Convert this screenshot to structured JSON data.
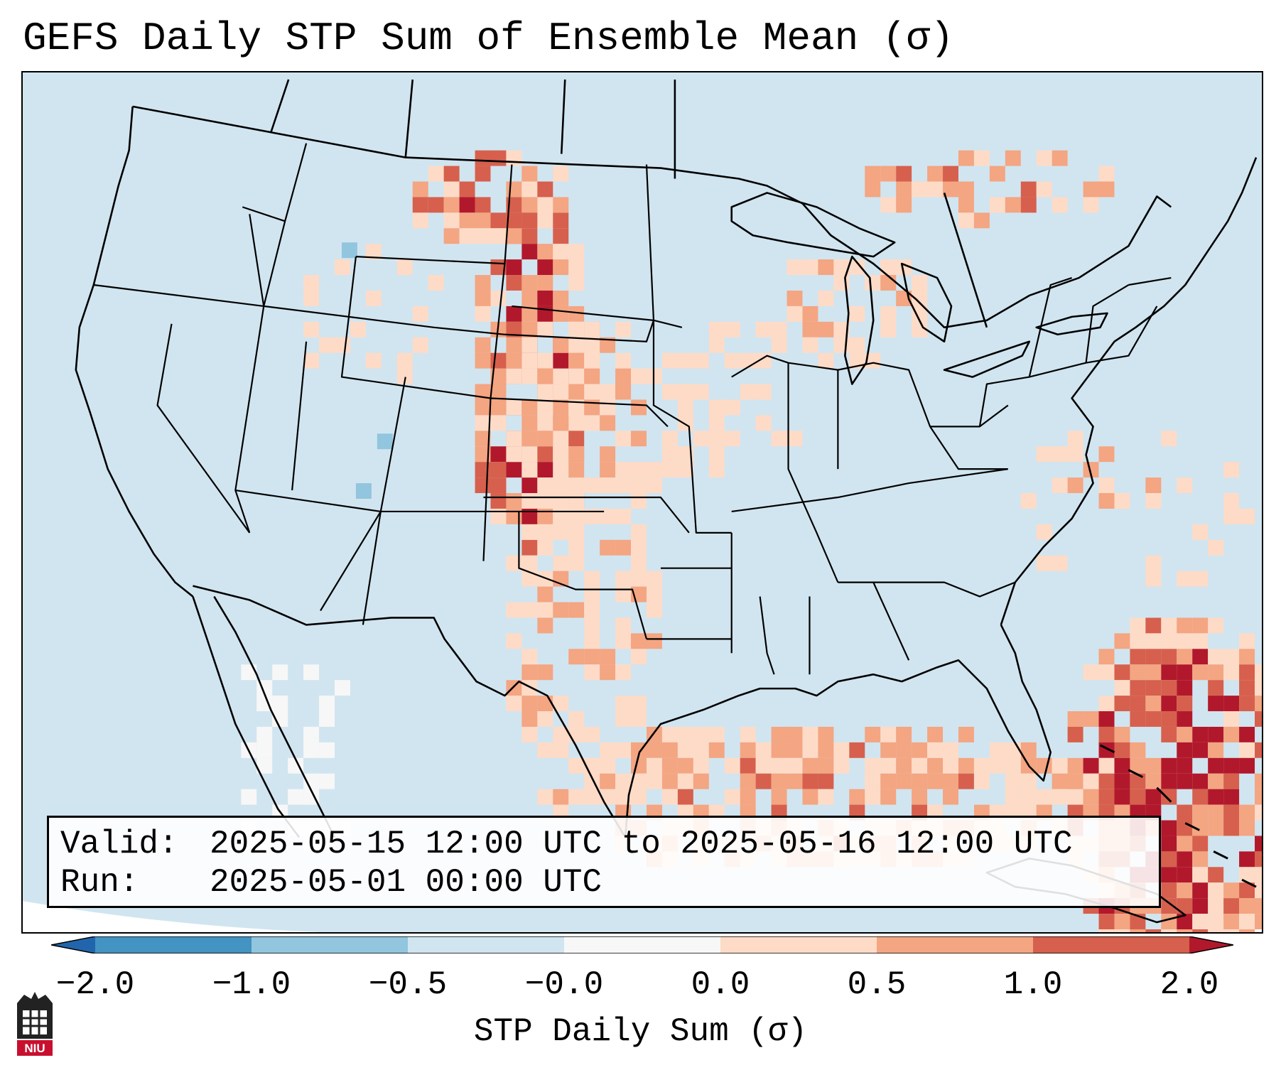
{
  "title": "GEFS Daily STP Sum of Ensemble Mean (σ)",
  "info": {
    "valid_label": "Valid:",
    "valid_value": "2025-05-15 12:00 UTC to 2025-05-16 12:00 UTC",
    "run_label": "Run:",
    "run_value": "2025-05-01 00:00 UTC"
  },
  "colorbar": {
    "label": "STP Daily Sum (σ)",
    "ticks": [
      "−2.0",
      "−1.0",
      "−0.5",
      "−0.0",
      "0.0",
      "0.5",
      "1.0",
      "2.0"
    ],
    "colors": {
      "below_min": "#2166ac",
      "bin_neg2_neg1": "#4393c3",
      "bin_neg1_neg05": "#92c5de",
      "bin_neg05_0": "#d1e5f0",
      "bin_zero": "#f7f7f7",
      "bin_0_05": "#fddbc7",
      "bin_05_1": "#f4a582",
      "bin_1_2": "#d6604d",
      "above_max": "#b2182b"
    }
  },
  "map": {
    "region": "Contiguous United States, northern Mexico, southern Canada, Gulf of Mexico and Caribbean",
    "background_color": "#d1e5f0",
    "boundary_color": "#000000"
  },
  "logo": {
    "name": "niu-logo",
    "text": "NIU"
  }
}
